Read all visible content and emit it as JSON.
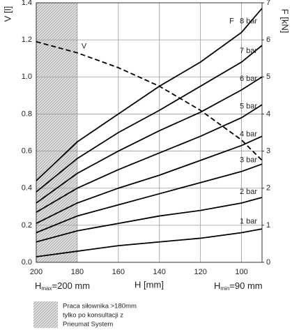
{
  "chart_data": {
    "type": "line",
    "x_label": "H [mm]",
    "y_label": "V [l]",
    "y2_label": "F [kN]",
    "x": [
      200,
      180,
      160,
      140,
      120,
      100,
      90
    ],
    "xlim": [
      200,
      90
    ],
    "xticks": [
      200,
      180,
      160,
      140,
      120,
      100
    ],
    "ylim": [
      0,
      1.4
    ],
    "yticks": [
      {
        "value": 0,
        "label": "0.0"
      },
      0.2,
      0.4,
      0.6,
      0.8,
      {
        "value": 1,
        "label": "1.0"
      },
      1.2,
      1.4
    ],
    "y2lim": [
      0,
      7
    ],
    "y2ticks": [
      0,
      1,
      2,
      3,
      4,
      5,
      6,
      7
    ],
    "grid": true,
    "shaded_region": [
      200,
      180
    ],
    "series": [
      {
        "name": "8 bar",
        "color": "#000000",
        "axis": "y2",
        "values": [
          2.2,
          3.25,
          4.0,
          4.75,
          5.4,
          6.2,
          6.85
        ]
      },
      {
        "name": "7 bar",
        "color": "#000000",
        "axis": "y2",
        "values": [
          1.9,
          2.8,
          3.5,
          4.1,
          4.75,
          5.4,
          5.85
        ]
      },
      {
        "name": "6 bar",
        "color": "#000000",
        "axis": "y2",
        "values": [
          1.6,
          2.4,
          3.0,
          3.55,
          4.05,
          4.65,
          5.0
        ]
      },
      {
        "name": "5 bar",
        "color": "#000000",
        "axis": "y2",
        "values": [
          1.35,
          2.0,
          2.5,
          2.95,
          3.4,
          3.9,
          4.25
        ]
      },
      {
        "name": "4 bar",
        "color": "#000000",
        "axis": "y2",
        "values": [
          1.05,
          1.6,
          2.0,
          2.35,
          2.75,
          3.15,
          3.4
        ]
      },
      {
        "name": "3 bar",
        "color": "#000000",
        "axis": "y2",
        "values": [
          0.8,
          1.25,
          1.55,
          1.85,
          2.15,
          2.45,
          2.65
        ]
      },
      {
        "name": "2 bar",
        "color": "#000000",
        "axis": "y2",
        "values": [
          0.55,
          0.85,
          1.05,
          1.25,
          1.4,
          1.6,
          1.75
        ]
      },
      {
        "name": "1 bar",
        "color": "#000000",
        "axis": "y2",
        "values": [
          0.15,
          0.3,
          0.45,
          0.55,
          0.65,
          0.8,
          0.9
        ]
      },
      {
        "name": "V",
        "color": "#000000",
        "dashed": true,
        "values": [
          1.19,
          1.13,
          1.05,
          0.95,
          0.82,
          0.66,
          0.55
        ]
      }
    ],
    "annotations": {
      "f_marker": "F",
      "h_max": {
        "base": "H",
        "sub": "max",
        "rest": "=200 mm"
      },
      "h_min": {
        "base": "H",
        "sub": "min",
        "rest": "=90 mm"
      }
    },
    "legend_note": [
      "Praca siłownika >180mm",
      "tylko po konsultacji z",
      "Pneumat System"
    ]
  }
}
